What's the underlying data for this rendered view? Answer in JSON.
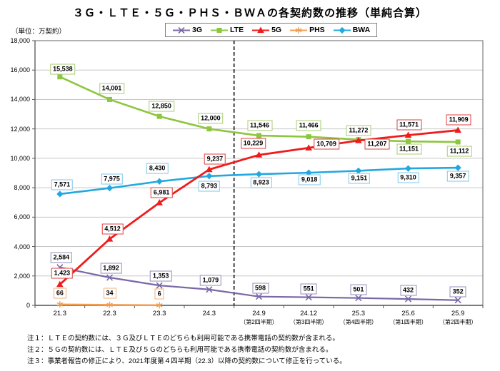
{
  "chart_data": {
    "type": "line",
    "title": "３Ｇ・ＬＴＥ・５Ｇ・ＰＨＳ・ＢＷＡの各契約数の推移（単純合算）",
    "unit_label": "（単位：万契約）",
    "categories": [
      "21.3",
      "22.3",
      "23.3",
      "24.3",
      "24.9",
      "24.12",
      "25.3",
      "25.6",
      "25.9"
    ],
    "category_sublabels": [
      "",
      "",
      "",
      "",
      "（第2四半期）",
      "（第3四半期）",
      "（第4四半期）",
      "（第1四半期）",
      "（第2四半期）"
    ],
    "ylim": [
      0,
      18000
    ],
    "ytick_step": 2000,
    "ytick_labels": [
      "0",
      "2,000",
      "4,000",
      "6,000",
      "8,000",
      "10,000",
      "12,000",
      "14,000",
      "16,000",
      "18,000"
    ],
    "grid": true,
    "legend_position": "top",
    "separator_after_index": 3,
    "draw_order": [
      "PHS",
      "3G",
      "BWA",
      "LTE",
      "5G"
    ],
    "series": [
      {
        "name": "3G",
        "color": "#7A68A6",
        "box_color": "#948CBC",
        "marker": "x",
        "line_width": 2.2,
        "values": [
          2584,
          1892,
          1353,
          1079,
          598,
          551,
          501,
          432,
          352
        ],
        "labels": [
          "2,584",
          "1,892",
          "1,353",
          "1,079",
          "598",
          "551",
          "501",
          "432",
          "352"
        ],
        "label_offsets": [
          [
            2,
            -14
          ],
          [
            2,
            -13
          ],
          [
            2,
            -13
          ],
          [
            2,
            -13
          ],
          [
            2,
            -12
          ],
          [
            0,
            -12
          ],
          [
            0,
            -12
          ],
          [
            0,
            -12
          ],
          [
            0,
            -12
          ]
        ]
      },
      {
        "name": "LTE",
        "color": "#8DC63F",
        "box_color": "#A8CC70",
        "marker": "square",
        "line_width": 2.6,
        "values": [
          15538,
          14001,
          12850,
          12000,
          11546,
          11466,
          11272,
          11151,
          11112
        ],
        "labels": [
          "15,538",
          "14,001",
          "12,850",
          "12,000",
          "11,546",
          "11,466",
          "11,272",
          "11,151",
          "11,112"
        ],
        "label_offsets": [
          [
            4,
            -11
          ],
          [
            3,
            -15
          ],
          [
            3,
            -14
          ],
          [
            2,
            -15
          ],
          [
            1,
            -14
          ],
          [
            0,
            -16
          ],
          [
            0,
            -13
          ],
          [
            1,
            11
          ],
          [
            2,
            13
          ]
        ]
      },
      {
        "name": "5G",
        "color": "#EE1C1C",
        "box_color": "#E04040",
        "marker": "triangle",
        "line_width": 2.8,
        "values": [
          1423,
          4512,
          6981,
          9237,
          10229,
          10709,
          11207,
          11571,
          11909
        ],
        "labels": [
          "1,423",
          "4,512",
          "6,981",
          "9,237",
          "10,229",
          "10,709",
          "11,207",
          "11,571",
          "11,909"
        ],
        "label_offsets": [
          [
            3,
            -16
          ],
          [
            4,
            -14
          ],
          [
            3,
            -14
          ],
          [
            8,
            -15
          ],
          [
            -8,
            -16
          ],
          [
            25,
            -5
          ],
          [
            26,
            5
          ],
          [
            1,
            -15
          ],
          [
            1,
            -15
          ]
        ]
      },
      {
        "name": "PHS",
        "color": "#F49C4E",
        "box_color": "#F2B078",
        "marker": "asterisk",
        "line_width": 2.4,
        "values": [
          66,
          34,
          6,
          null,
          null,
          null,
          null,
          null,
          null
        ],
        "labels": [
          "66",
          "34",
          "6",
          null,
          null,
          null,
          null,
          null,
          null
        ],
        "label_offsets": [
          [
            0,
            -16
          ],
          [
            0,
            -16
          ],
          [
            0,
            -16
          ]
        ]
      },
      {
        "name": "BWA",
        "color": "#22A7E0",
        "box_color": "#7CC7EA",
        "marker": "diamond",
        "line_width": 2.6,
        "values": [
          7571,
          7975,
          8430,
          8793,
          8923,
          9018,
          9151,
          9310,
          9357
        ],
        "labels": [
          "7,571",
          "7,975",
          "8,430",
          "8,793",
          "8,923",
          "9,018",
          "9,151",
          "9,310",
          "9,357"
        ],
        "label_offsets": [
          [
            3,
            -13
          ],
          [
            3,
            -13
          ],
          [
            -3,
            -18
          ],
          [
            0,
            14
          ],
          [
            3,
            12
          ],
          [
            1,
            10
          ],
          [
            1,
            11
          ],
          [
            0,
            13
          ],
          [
            0,
            12
          ]
        ]
      }
    ],
    "footnotes": [
      "注１：ＬＴＥの契約数には、３Ｇ及びＬＴＥのどちらも利用可能である携帯電話の契約数が含まれる。",
      "注２：５Ｇの契約数には、ＬＴＥ及び５Ｇのどちらも利用可能である携帯電話の契約数が含まれる。",
      "注３：事業者報告の修正により、2021年度第４四半期（22.3）以降の契約数について修正を行っている。"
    ]
  }
}
